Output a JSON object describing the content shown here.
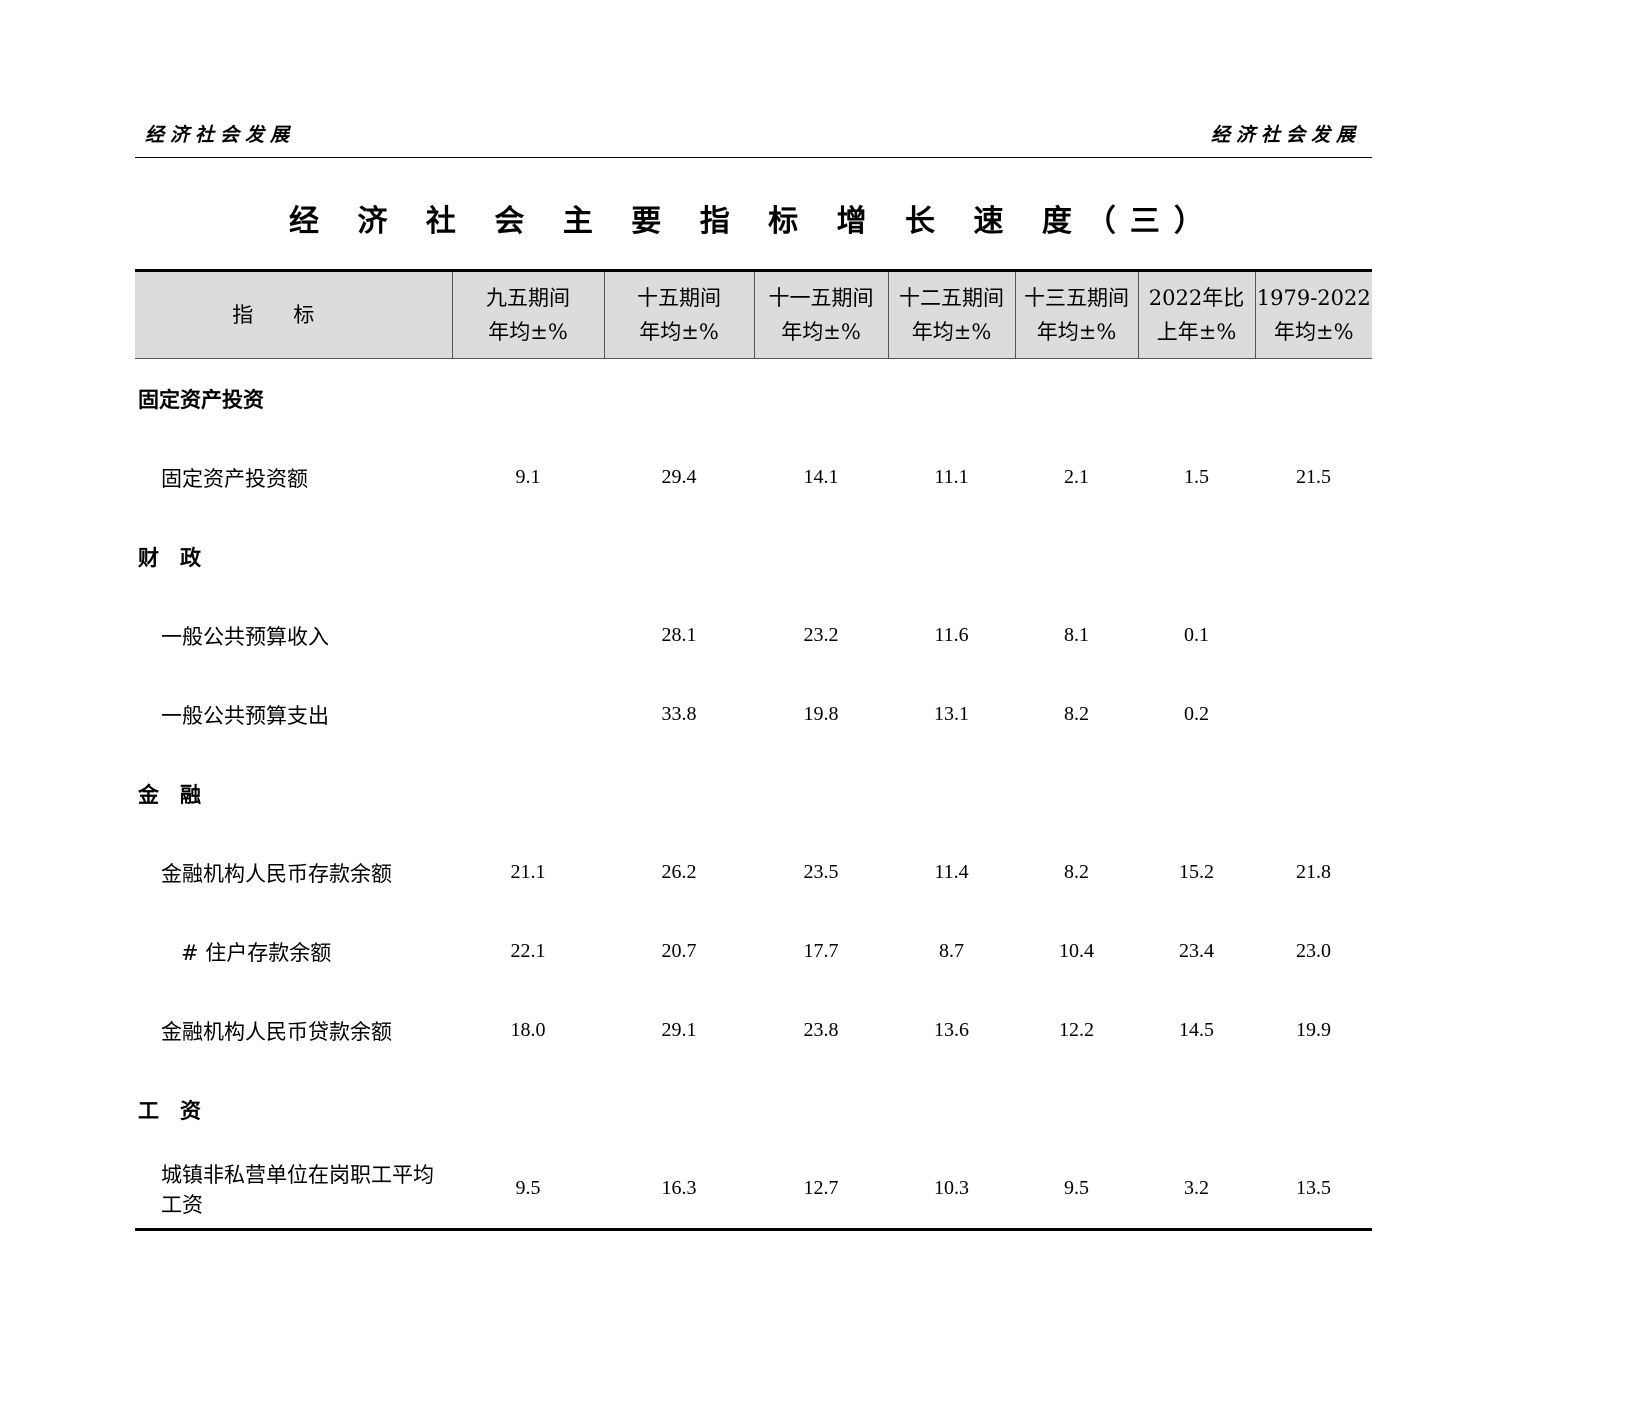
{
  "running_header": {
    "left": "经济社会发展",
    "right": "经济社会发展"
  },
  "title": "经 济 社 会 主 要 指 标 增 长 速 度（三）",
  "columns": [
    {
      "l1": "指标",
      "l2": ""
    },
    {
      "l1": "九五期间",
      "l2": "年均±%"
    },
    {
      "l1": "十五期间",
      "l2": "年均±%"
    },
    {
      "l1": "十一五期间",
      "l2": "年均±%"
    },
    {
      "l1": "十二五期间",
      "l2": "年均±%"
    },
    {
      "l1": "十三五期间",
      "l2": "年均±%"
    },
    {
      "l1": "2022年比",
      "l2": "上年±%"
    },
    {
      "l1": "1979-2022",
      "l2": "年均±%"
    }
  ],
  "rows": [
    {
      "type": "section",
      "label": "固定资产投资"
    },
    {
      "type": "item",
      "label": "固定资产投资额",
      "values": [
        "9.1",
        "29.4",
        "14.1",
        "11.1",
        "2.1",
        "1.5",
        "21.5"
      ]
    },
    {
      "type": "section",
      "label": "财　政"
    },
    {
      "type": "item",
      "label": "一般公共预算收入",
      "values": [
        "",
        "28.1",
        "23.2",
        "11.6",
        "8.1",
        "0.1",
        ""
      ]
    },
    {
      "type": "item",
      "label": "一般公共预算支出",
      "values": [
        "",
        "33.8",
        "19.8",
        "13.1",
        "8.2",
        "0.2",
        ""
      ]
    },
    {
      "type": "section",
      "label": "金　融"
    },
    {
      "type": "item",
      "label": "金融机构人民币存款余额",
      "values": [
        "21.1",
        "26.2",
        "23.5",
        "11.4",
        "8.2",
        "15.2",
        "21.8"
      ]
    },
    {
      "type": "subitem",
      "label": "# 住户存款余额",
      "values": [
        "22.1",
        "20.7",
        "17.7",
        "8.7",
        "10.4",
        "23.4",
        "23.0"
      ]
    },
    {
      "type": "item",
      "label": "金融机构人民币贷款余额",
      "values": [
        "18.0",
        "29.1",
        "23.8",
        "13.6",
        "12.2",
        "14.5",
        "19.9"
      ]
    },
    {
      "type": "section",
      "label": "工　资"
    },
    {
      "type": "item",
      "label": "城镇非私营单位在岗职工平均工资",
      "values": [
        "9.5",
        "16.3",
        "12.7",
        "10.3",
        "9.5",
        "3.2",
        "13.5"
      ]
    }
  ]
}
